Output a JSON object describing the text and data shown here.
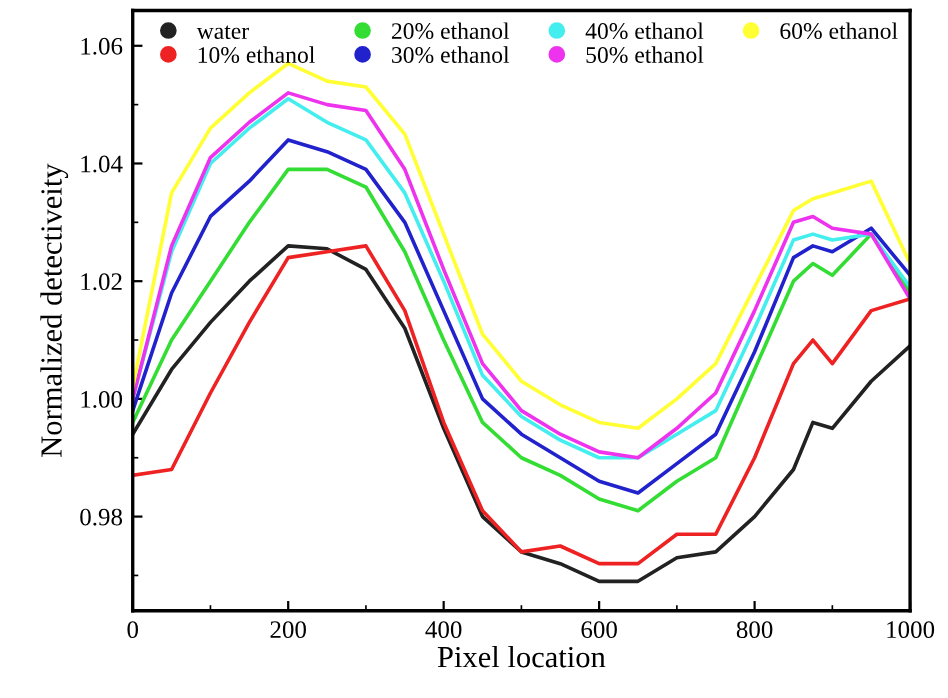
{
  "chart_data": {
    "type": "line",
    "xlabel": "Pixel location",
    "ylabel": "Normalized detectiveity",
    "x": [
      0,
      50,
      100,
      150,
      200,
      250,
      300,
      350,
      400,
      450,
      500,
      550,
      600,
      650,
      700,
      750,
      800,
      850,
      875,
      900,
      950,
      1000
    ],
    "series": [
      {
        "name": "water",
        "color": "#222222",
        "values": [
          0.994,
          1.005,
          1.013,
          1.02,
          1.026,
          1.0255,
          1.022,
          1.012,
          0.995,
          0.98,
          0.974,
          0.972,
          0.969,
          0.969,
          0.973,
          0.974,
          0.98,
          0.988,
          0.996,
          0.995,
          1.003,
          1.009
        ]
      },
      {
        "name": "10% ethanol",
        "color": "#ee2222",
        "values": [
          0.987,
          0.988,
          1.001,
          1.013,
          1.024,
          1.025,
          1.026,
          1.015,
          0.996,
          0.981,
          0.974,
          0.975,
          0.972,
          0.972,
          0.977,
          0.977,
          0.99,
          1.006,
          1.01,
          1.006,
          1.015,
          1.017
        ]
      },
      {
        "name": "20% ethanol",
        "color": "#33dd33",
        "values": [
          0.996,
          1.01,
          1.02,
          1.03,
          1.039,
          1.039,
          1.036,
          1.025,
          1.01,
          0.996,
          0.99,
          0.987,
          0.983,
          0.981,
          0.986,
          0.99,
          1.005,
          1.02,
          1.023,
          1.021,
          1.028,
          1.018
        ]
      },
      {
        "name": "30% ethanol",
        "color": "#2222cc",
        "values": [
          0.998,
          1.018,
          1.031,
          1.037,
          1.044,
          1.042,
          1.039,
          1.03,
          1.015,
          1.0,
          0.994,
          0.99,
          0.986,
          0.984,
          0.989,
          0.994,
          1.008,
          1.024,
          1.026,
          1.025,
          1.029,
          1.021
        ]
      },
      {
        "name": "40% ethanol",
        "color": "#44eeee",
        "values": [
          1.0,
          1.025,
          1.04,
          1.046,
          1.051,
          1.047,
          1.044,
          1.035,
          1.02,
          1.004,
          0.997,
          0.993,
          0.99,
          0.99,
          0.994,
          0.998,
          1.012,
          1.027,
          1.028,
          1.027,
          1.028,
          1.019
        ]
      },
      {
        "name": "50% ethanol",
        "color": "#ee33ee",
        "values": [
          1.0,
          1.026,
          1.041,
          1.047,
          1.052,
          1.05,
          1.049,
          1.039,
          1.022,
          1.006,
          0.998,
          0.994,
          0.991,
          0.99,
          0.995,
          1.001,
          1.015,
          1.03,
          1.031,
          1.029,
          1.028,
          1.017
        ]
      },
      {
        "name": "60% ethanol",
        "color": "#ffff33",
        "values": [
          1.002,
          1.035,
          1.046,
          1.052,
          1.057,
          1.054,
          1.053,
          1.045,
          1.028,
          1.011,
          1.003,
          0.999,
          0.996,
          0.995,
          1.0,
          1.006,
          1.019,
          1.032,
          1.034,
          1.035,
          1.037,
          1.023
        ]
      }
    ],
    "xlim": [
      0,
      1000
    ],
    "xticks": [
      0,
      200,
      400,
      600,
      800,
      1000
    ],
    "ylim": [
      0.964,
      1.066
    ],
    "yticks": [
      {
        "value": 0.98,
        "label": "0.98"
      },
      {
        "value": 1.0,
        "label": "1.00"
      },
      {
        "value": 1.02,
        "label": "1.02"
      },
      {
        "value": 1.04,
        "label": "1.04"
      },
      {
        "value": 1.06,
        "label": "1.06"
      }
    ],
    "legend": "top",
    "grid": false
  }
}
